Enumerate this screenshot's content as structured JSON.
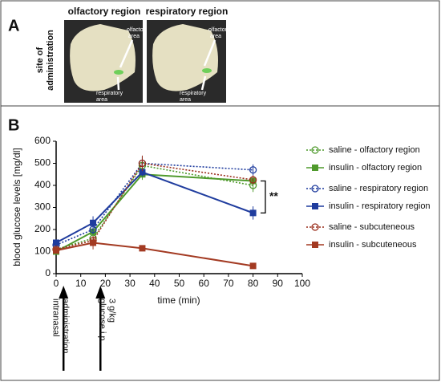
{
  "panel_a": {
    "label": "A",
    "side_label": [
      "site of",
      "administration"
    ],
    "photos": [
      {
        "title": "olfactory region",
        "upper_label": [
          "olfactory",
          "area"
        ],
        "lower_label": [
          "respiratory",
          "area"
        ]
      },
      {
        "title": "respiratory region",
        "upper_label": [
          "olfactory",
          "area"
        ],
        "lower_label": [
          "respiratory",
          "area"
        ]
      }
    ]
  },
  "chart_data": {
    "type": "line",
    "panel_label": "B",
    "x_label": "time (min)",
    "y_label": "blood glucose levels [mg/dl]",
    "x": [
      0,
      15,
      35,
      80
    ],
    "xlim": [
      0,
      100
    ],
    "xticks": [
      0,
      10,
      20,
      30,
      40,
      50,
      60,
      70,
      80,
      90,
      100
    ],
    "ylim": [
      0,
      600
    ],
    "yticks": [
      0,
      100,
      200,
      300,
      400,
      500,
      600
    ],
    "series": [
      {
        "name": "saline - olfactory region",
        "color": "#4f9a2c",
        "dashed": true,
        "marker": "circle",
        "values": [
          110,
          160,
          490,
          400
        ],
        "errors": [
          15,
          20,
          40,
          30
        ]
      },
      {
        "name": "insulin - olfactory region",
        "color": "#4f9a2c",
        "dashed": false,
        "marker": "square",
        "values": [
          100,
          190,
          450,
          420
        ],
        "errors": [
          10,
          25,
          25,
          20
        ]
      },
      {
        "name": "saline - respiratory region",
        "color": "#1f3c9e",
        "dashed": true,
        "marker": "circle",
        "values": [
          130,
          200,
          500,
          470
        ],
        "errors": [
          15,
          20,
          30,
          25
        ]
      },
      {
        "name": "insulin - respiratory region",
        "color": "#1f3c9e",
        "dashed": false,
        "marker": "square",
        "values": [
          140,
          230,
          460,
          275
        ],
        "errors": [
          15,
          30,
          20,
          30
        ]
      },
      {
        "name": "saline - subcuteneous",
        "color": "#9a2e1c",
        "dashed": true,
        "marker": "circle",
        "values": [
          110,
          150,
          500,
          425
        ],
        "errors": [
          10,
          20,
          35,
          20
        ]
      },
      {
        "name": "insulin - subcuteneous",
        "color": "#a33a22",
        "dashed": false,
        "marker": "square",
        "values": [
          105,
          140,
          115,
          35
        ],
        "errors": [
          10,
          30,
          10,
          5
        ]
      }
    ],
    "significance": {
      "label": "**",
      "range": [
        275,
        420
      ]
    },
    "annotations": [
      {
        "x": 3,
        "lines": [
          "intranasal",
          "administration"
        ]
      },
      {
        "x": 18,
        "lines": [
          "3 g/kg",
          "glucose i.p."
        ]
      }
    ]
  }
}
